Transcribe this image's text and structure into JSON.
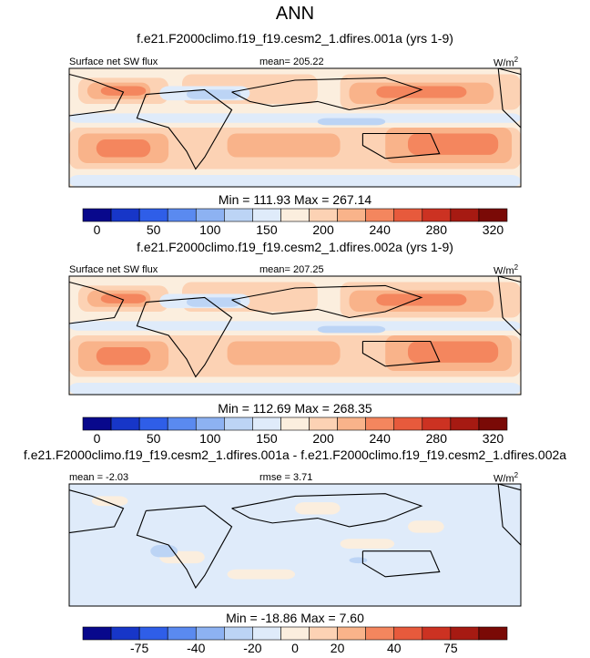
{
  "page": {
    "title": "ANN",
    "background": "#ffffff"
  },
  "chart_data": [
    {
      "type": "heatmap",
      "subtitle": "f.e21.F2000climo.f19_f19.cesm2_1.dfires.001a (yrs 1-9)",
      "variable": "Surface net SW flux",
      "mean_label": "mean= 205.22",
      "units_label": "W/m",
      "units_sup": "2",
      "stats": "Min = 111.93 Max = 267.14",
      "colorbar": {
        "ticks": [
          "0",
          "50",
          "100",
          "150",
          "200",
          "240",
          "280",
          "320"
        ],
        "colors": [
          "#08088c",
          "#1736c8",
          "#2f5ee8",
          "#5a8af0",
          "#8db2f2",
          "#bcd4f5",
          "#dfebfa",
          "#fbeede",
          "#fcd2b4",
          "#f9b38a",
          "#f4865e",
          "#e75a3c",
          "#cc3222",
          "#a61a12",
          "#7a0a06"
        ]
      }
    },
    {
      "type": "heatmap",
      "subtitle": "f.e21.F2000climo.f19_f19.cesm2_1.dfires.002a (yrs 1-9)",
      "variable": "Surface net SW flux",
      "mean_label": "mean= 207.25",
      "units_label": "W/m",
      "units_sup": "2",
      "stats": "Min = 112.69 Max = 268.35",
      "colorbar": {
        "ticks": [
          "0",
          "50",
          "100",
          "150",
          "200",
          "240",
          "280",
          "320"
        ],
        "colors": [
          "#08088c",
          "#1736c8",
          "#2f5ee8",
          "#5a8af0",
          "#8db2f2",
          "#bcd4f5",
          "#dfebfa",
          "#fbeede",
          "#fcd2b4",
          "#f9b38a",
          "#f4865e",
          "#e75a3c",
          "#cc3222",
          "#a61a12",
          "#7a0a06"
        ]
      }
    },
    {
      "type": "heatmap",
      "subtitle": "f.e21.F2000climo.f19_f19.cesm2_1.dfires.001a - f.e21.F2000climo.f19_f19.cesm2_1.dfires.002a",
      "mean_label": "mean =  -2.03",
      "rmse_label": "rmse =   3.71",
      "units_label": "W/m",
      "units_sup": "2",
      "stats": "Min = -18.86 Max =   7.60",
      "colorbar": {
        "ticks": [
          "-75",
          "-40",
          "-20",
          "0",
          "20",
          "40",
          "75"
        ],
        "colors": [
          "#08088c",
          "#1736c8",
          "#2f5ee8",
          "#5a8af0",
          "#8db2f2",
          "#bcd4f5",
          "#dfebfa",
          "#fbeede",
          "#fcd2b4",
          "#f9b38a",
          "#f4865e",
          "#e75a3c",
          "#cc3222",
          "#a61a12",
          "#7a0a06"
        ]
      }
    }
  ]
}
